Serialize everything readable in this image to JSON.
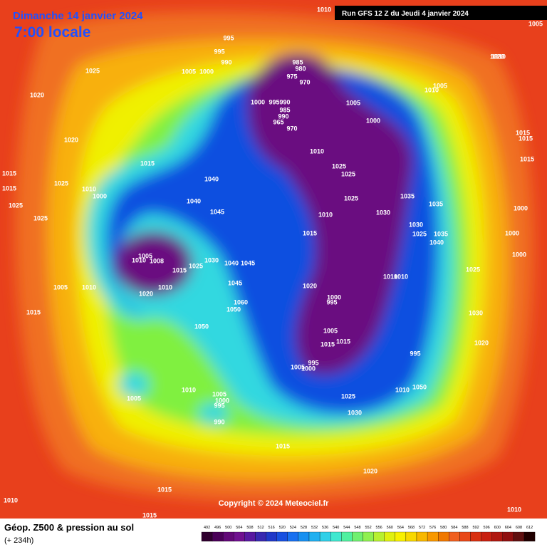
{
  "header": {
    "date": "Dimanche 14 janvier 2024",
    "time": "7:00 locale",
    "run": "Run GFS 12 Z du Jeudi 4 janvier 2024"
  },
  "copyright": "Copyright © 2024 Meteociel.fr",
  "legend": {
    "title": "Géop. Z500 & pression au sol",
    "lead": "(+ 234h)",
    "scale": [
      492,
      496,
      500,
      504,
      508,
      512,
      516,
      520,
      524,
      528,
      532,
      536,
      540,
      544,
      548,
      552,
      556,
      560,
      564,
      568,
      572,
      576,
      580,
      584,
      588,
      592,
      596,
      600,
      604,
      608,
      612
    ]
  },
  "isobar_labels": [
    "1025",
    "1020",
    "1020",
    "1015",
    "1025",
    "1015",
    "1015",
    "1025",
    "1025",
    "1010",
    "1000",
    "1005",
    "1010",
    "1015",
    "1040",
    "1040",
    "1045",
    "1005",
    "1010",
    "1008",
    "1015",
    "1025",
    "1030",
    "1040",
    "1045",
    "1020",
    "1010",
    "1045",
    "1060",
    "1050",
    "1050",
    "1010",
    "1005",
    "1005",
    "1000",
    "995",
    "990",
    "1015",
    "1020",
    "1015",
    "1015",
    "1010",
    "1010",
    "1005",
    "1010",
    "1005",
    "1000",
    "995",
    "995",
    "990",
    "985",
    "980",
    "975",
    "970",
    "1000",
    "995",
    "990",
    "985",
    "990",
    "965",
    "970",
    "1010",
    "1025",
    "1025",
    "1025",
    "1010",
    "1015",
    "1030",
    "1035",
    "1035",
    "1030",
    "1025",
    "1035",
    "1040",
    "1000",
    "1005",
    "1010",
    "1005",
    "1015",
    "1015",
    "1015",
    "1000",
    "1000",
    "1000",
    "1025",
    "1010",
    "1010",
    "1020",
    "1000",
    "995",
    "1005",
    "1015",
    "1015",
    "1005",
    "995",
    "1000",
    "995",
    "1010",
    "1050",
    "1025",
    "1030",
    "1030",
    "1020",
    "1020",
    "1010"
  ]
}
